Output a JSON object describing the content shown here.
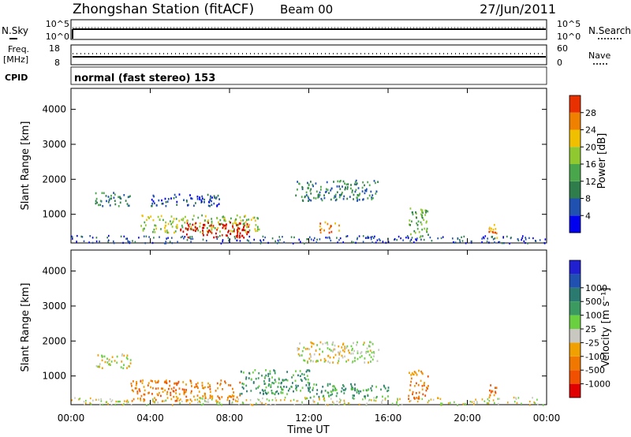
{
  "header": {
    "station": "Zhongshan Station (fitACF)",
    "beam": "Beam 00",
    "date": "27/Jun/2011"
  },
  "params": {
    "nsky_label": "N.Sky",
    "nsky_ticks": [
      "10^5",
      "10^0"
    ],
    "nsearch_label": "N.Search",
    "nsearch_ticks": [
      "10^5",
      "10^0"
    ],
    "freq_label": "Freq.",
    "freq_unit": "[MHz]",
    "freq_ticks": [
      "18",
      "8"
    ],
    "nave_label": "Nave",
    "nave_ticks": [
      "60",
      "0"
    ],
    "cpid_label": "CPID",
    "cpid_text": "normal (fast stereo) 153"
  },
  "colors": {
    "power": [
      "#0000ee",
      "#2050b0",
      "#2e7d4a",
      "#4aa64a",
      "#90c830",
      "#f0c000",
      "#f08000",
      "#e83000",
      "#d00000"
    ],
    "velocity": [
      "#e00000",
      "#f05000",
      "#f07800",
      "#f0a000",
      "#c8c8c0",
      "#6ad040",
      "#3a9a60",
      "#2a7a70",
      "#2050b0",
      "#2020d0"
    ]
  },
  "chart_data": [
    {
      "type": "heatmap",
      "name": "power",
      "ylabel": "Slant Range [km]",
      "ylim": [
        180,
        4600
      ],
      "yticks": [
        "1000",
        "2000",
        "3000",
        "4000"
      ],
      "xticks": [
        "00:00",
        "04:00",
        "08:00",
        "12:00",
        "16:00",
        "20:00",
        "00:00"
      ],
      "colorbar_label": "Power [dB]",
      "colorbar_ticks": [
        "4",
        "8",
        "12",
        "16",
        "20",
        "24",
        "28"
      ],
      "features": [
        {
          "t": [
            1.2,
            3.0
          ],
          "r": [
            1250,
            1650
          ],
          "level": 2
        },
        {
          "t": [
            4.0,
            7.5
          ],
          "r": [
            1250,
            1600
          ],
          "level": 1
        },
        {
          "t": [
            3.5,
            9.5
          ],
          "r": [
            500,
            1000
          ],
          "level": 4
        },
        {
          "t": [
            5.5,
            9.0
          ],
          "r": [
            350,
            800
          ],
          "level": 8
        },
        {
          "t": [
            11.3,
            15.5
          ],
          "r": [
            1400,
            2000
          ],
          "level": 2
        },
        {
          "t": [
            12.5,
            13.5
          ],
          "r": [
            500,
            800
          ],
          "level": 6
        },
        {
          "t": [
            17.0,
            18.0
          ],
          "r": [
            350,
            1200
          ],
          "level": 3
        },
        {
          "t": [
            21.0,
            21.5
          ],
          "r": [
            350,
            800
          ],
          "level": 6
        }
      ]
    },
    {
      "type": "heatmap",
      "name": "velocity",
      "ylabel": "Slant Range [km]",
      "ylim": [
        180,
        4600
      ],
      "yticks": [
        "1000",
        "2000",
        "3000",
        "4000"
      ],
      "xticks": [
        "00:00",
        "04:00",
        "08:00",
        "12:00",
        "16:00",
        "20:00",
        "00:00"
      ],
      "xlabel": "Time UT",
      "colorbar_label": "Velocity [m s⁻¹]",
      "colorbar_ticks": [
        "-1000",
        "-500",
        "-100",
        "-25",
        "25",
        "100",
        "500",
        "1000"
      ],
      "features": [
        {
          "t": [
            1.2,
            3.0
          ],
          "r": [
            1250,
            1650
          ],
          "level": 4
        },
        {
          "t": [
            11.3,
            15.5
          ],
          "r": [
            1400,
            2000
          ],
          "level": 4
        },
        {
          "t": [
            3.0,
            8.5
          ],
          "r": [
            300,
            900
          ],
          "level": 2
        },
        {
          "t": [
            8.5,
            12.0
          ],
          "r": [
            500,
            1200
          ],
          "level": 6
        },
        {
          "t": [
            12.0,
            16.0
          ],
          "r": [
            400,
            800
          ],
          "level": 6
        },
        {
          "t": [
            17.0,
            18.0
          ],
          "r": [
            350,
            1200
          ],
          "level": 2
        },
        {
          "t": [
            21.0,
            21.5
          ],
          "r": [
            350,
            800
          ],
          "level": 2
        }
      ]
    }
  ]
}
